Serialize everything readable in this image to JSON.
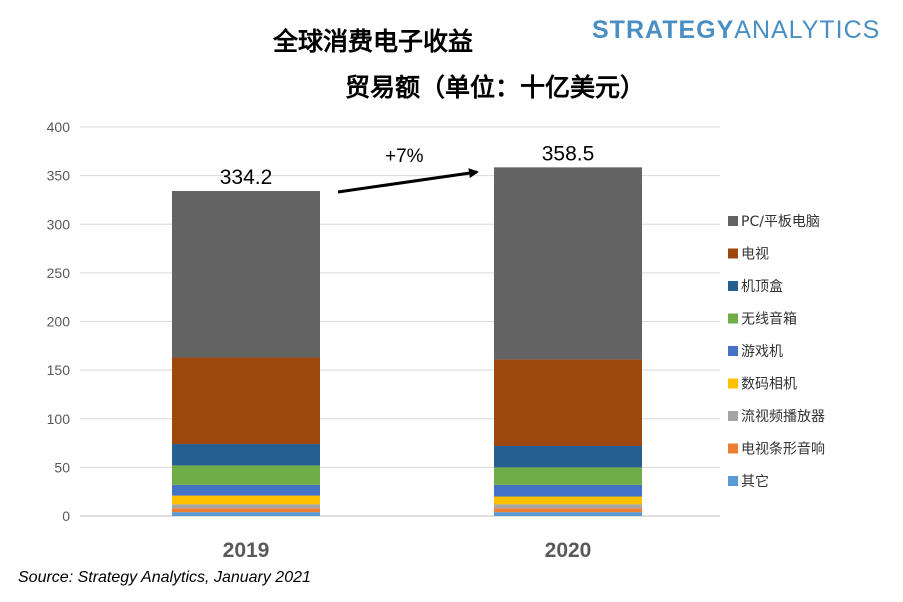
{
  "title_line1": "全球消费电子收益",
  "title_line2": "贸易额（单位：十亿美元）",
  "brand": {
    "bold": "STRATEGY",
    "light": "ANALYTICS",
    "color": "#4a8fc4"
  },
  "source": "Source: Strategy Analytics, January 2021",
  "chart_data": {
    "type": "bar",
    "stacked": true,
    "categories": [
      "2019",
      "2020"
    ],
    "ylim": [
      0,
      400
    ],
    "yticks": [
      0,
      50,
      100,
      150,
      200,
      250,
      300,
      350,
      400
    ],
    "grid": true,
    "legend_position": "right",
    "series": [
      {
        "name": "其它",
        "color": "#5b9bd5",
        "values": [
          4,
          4
        ]
      },
      {
        "name": "电视条形音响",
        "color": "#ed7d31",
        "values": [
          4,
          4
        ]
      },
      {
        "name": "流视频播放器",
        "color": "#a5a5a5",
        "values": [
          4,
          4
        ]
      },
      {
        "name": "数码相机",
        "color": "#ffc000",
        "values": [
          9,
          8
        ]
      },
      {
        "name": "游戏机",
        "color": "#4472c4",
        "values": [
          11,
          12
        ]
      },
      {
        "name": "无线音箱",
        "color": "#70ad47",
        "values": [
          20,
          18
        ]
      },
      {
        "name": "机顶盒",
        "color": "#255e91",
        "values": [
          22,
          22
        ]
      },
      {
        "name": "电视",
        "color": "#9e480e",
        "values": [
          89,
          89
        ]
      },
      {
        "name": "PC/平板电脑",
        "color": "#636363",
        "values": [
          171.2,
          197.5
        ]
      }
    ],
    "totals": [
      "334.2",
      "358.5"
    ],
    "annotation": "+7%"
  }
}
